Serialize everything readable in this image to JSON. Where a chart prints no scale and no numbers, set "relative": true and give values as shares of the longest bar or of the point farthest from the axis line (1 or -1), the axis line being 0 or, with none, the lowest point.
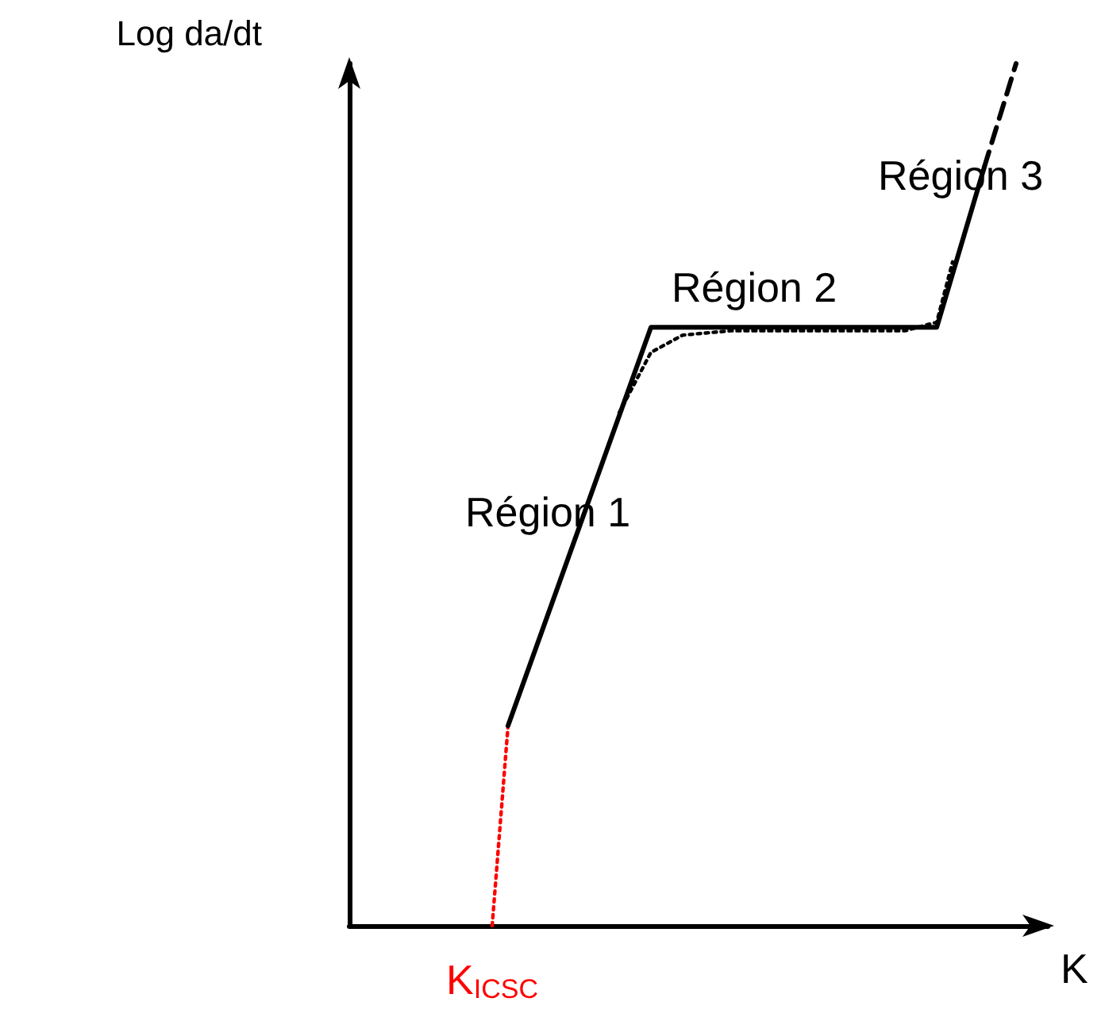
{
  "chart_data": {
    "type": "line",
    "relative": true,
    "xlabel": "K",
    "ylabel": "Log da/dt",
    "categories": [
      null,
      null,
      null,
      null,
      null,
      null,
      null,
      null,
      null,
      null,
      null,
      null,
      null,
      null,
      null,
      null,
      null,
      null,
      null,
      null,
      null,
      null,
      null,
      null,
      null,
      null,
      null,
      null,
      null,
      null,
      null,
      null,
      null,
      null,
      null,
      null,
      null,
      null,
      null,
      null,
      null,
      null,
      null,
      null,
      null
    ],
    "series": [
      {
        "color": "#ff0000",
        "line_style": "dotted",
        "values": [
          null,
          null,
          null,
          null,
          null,
          null,
          null,
          null,
          null,
          0,
          0.232,
          null,
          null,
          null,
          null,
          null,
          null,
          null,
          null,
          null,
          null,
          null,
          null,
          null,
          null,
          null,
          null,
          null,
          null,
          null,
          null,
          null,
          null,
          null,
          null,
          null,
          null,
          null,
          null,
          null,
          null,
          null,
          null,
          null,
          null
        ]
      },
      {
        "color": "#000000",
        "line_style": "solid",
        "values": [
          null,
          null,
          null,
          null,
          null,
          null,
          null,
          null,
          null,
          null,
          0.232,
          null,
          null,
          null,
          null,
          null,
          null,
          null,
          null,
          0.694,
          null,
          null,
          null,
          null,
          null,
          null,
          null,
          null,
          null,
          null,
          null,
          null,
          null,
          null,
          null,
          null,
          null,
          0.694,
          null,
          null,
          0.88,
          null,
          null,
          null,
          null
        ]
      },
      {
        "color": "#000000",
        "line_style": "dashed",
        "values": [
          null,
          null,
          null,
          null,
          null,
          null,
          null,
          null,
          null,
          null,
          null,
          null,
          null,
          null,
          null,
          null,
          null,
          null,
          null,
          null,
          null,
          null,
          null,
          null,
          null,
          null,
          null,
          null,
          null,
          null,
          null,
          null,
          null,
          null,
          null,
          null,
          null,
          null,
          null,
          null,
          0.88,
          null,
          1,
          null,
          null
        ]
      },
      {
        "color": "#000000",
        "line_style": "dotted",
        "values": [
          null,
          null,
          null,
          null,
          null,
          null,
          null,
          null,
          null,
          null,
          null,
          null,
          null,
          null,
          null,
          null,
          null,
          0.595,
          null,
          0.665,
          null,
          0.685,
          null,
          null,
          0.69,
          null,
          null,
          null,
          null,
          null,
          null,
          null,
          null,
          null,
          null,
          0.69,
          null,
          0.7,
          0.77,
          null,
          null,
          null,
          null,
          null,
          null
        ]
      }
    ],
    "annotations": [
      "K$_{ICSC}$",
      "Région 1",
      "Région 2",
      "Région 3"
    ],
    "marker": "none",
    "grid": false
  }
}
